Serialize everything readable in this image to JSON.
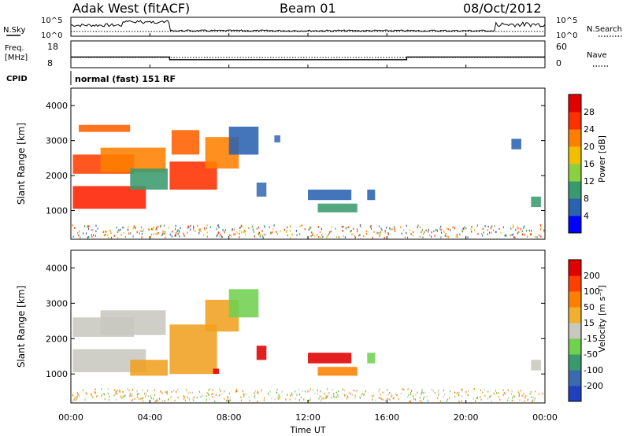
{
  "header": {
    "station": "Adak West (fitACF)",
    "beam": "Beam 01",
    "date": "08/Oct/2012"
  },
  "noise_panel": {
    "left_label": "N.Sky",
    "right_label": "N.Search",
    "left_ticks": [
      "10^5",
      "10^0"
    ],
    "right_ticks": [
      "10^5",
      "10^0"
    ]
  },
  "freq_panel": {
    "left_label_1": "Freq.",
    "left_label_2": "[MHz]",
    "right_label": "Nave",
    "left_ticks": [
      "18",
      "8"
    ],
    "right_ticks": [
      "60",
      "0"
    ],
    "freq_steps": [
      {
        "start": 0,
        "end": 5,
        "value": 12
      },
      {
        "start": 5,
        "end": 17,
        "value": 11
      },
      {
        "start": 17,
        "end": 24,
        "value": 12
      }
    ]
  },
  "cpid": {
    "label": "CPID",
    "value": "normal (fast) 151 RF"
  },
  "power_panel": {
    "ylabel": "Slant Range [km]",
    "yticks": [
      "1000",
      "2000",
      "3000",
      "4000"
    ],
    "cbar_label": "Power [dB]",
    "cbar_ticks": [
      "4",
      "8",
      "12",
      "16",
      "20",
      "24",
      "28"
    ],
    "cbar_colors": [
      "#0000ff",
      "#2a62b0",
      "#3a9a6e",
      "#8ad040",
      "#f0c000",
      "#ff8000",
      "#ff3000",
      "#e00000"
    ]
  },
  "velocity_panel": {
    "ylabel": "Slant Range [km]",
    "yticks": [
      "1000",
      "2000",
      "3000",
      "4000"
    ],
    "cbar_label": "Velocity [m s⁻¹]",
    "cbar_ticks": [
      "200",
      "100",
      "50",
      "15",
      "-15",
      "-50",
      "-100",
      "-200"
    ],
    "cbar_colors": [
      "#2040c0",
      "#3a6ab0",
      "#3a9a6e",
      "#70d050",
      "#c8c8c0",
      "#f0b030",
      "#ff8000",
      "#ff4000",
      "#e00000"
    ]
  },
  "xaxis": {
    "label": "Time UT",
    "ticks": [
      "00:00",
      "04:00",
      "08:00",
      "12:00",
      "16:00",
      "20:00",
      "00:00"
    ]
  },
  "chart_data": {
    "type": "heatmap",
    "x_range_hours": [
      0,
      24
    ],
    "y_range_km": [
      180,
      4500
    ],
    "grid": false,
    "power_regions": [
      {
        "t0": 0.1,
        "t1": 3.8,
        "r0": 1050,
        "r1": 1700,
        "color": "#ff2000"
      },
      {
        "t0": 0.1,
        "t1": 3.2,
        "r0": 2050,
        "r1": 2600,
        "color": "#ff4000"
      },
      {
        "t0": 0.4,
        "t1": 3.0,
        "r0": 3250,
        "r1": 3450,
        "color": "#ff6000"
      },
      {
        "t0": 1.5,
        "t1": 4.8,
        "r0": 2100,
        "r1": 2800,
        "color": "#ff8000"
      },
      {
        "t0": 3.0,
        "t1": 4.9,
        "r0": 1600,
        "r1": 2200,
        "color": "#3a9a6e"
      },
      {
        "t0": 5.0,
        "t1": 7.4,
        "r0": 1600,
        "r1": 2400,
        "color": "#ff3000"
      },
      {
        "t0": 5.1,
        "t1": 6.5,
        "r0": 2600,
        "r1": 3300,
        "color": "#ff6000"
      },
      {
        "t0": 6.8,
        "t1": 8.5,
        "r0": 2200,
        "r1": 3100,
        "color": "#ff8000"
      },
      {
        "t0": 8.0,
        "t1": 9.5,
        "r0": 2600,
        "r1": 3400,
        "color": "#2a62b0"
      },
      {
        "t0": 9.4,
        "t1": 9.9,
        "r0": 1400,
        "r1": 1800,
        "color": "#3a6ab0"
      },
      {
        "t0": 10.3,
        "t1": 10.6,
        "r0": 2950,
        "r1": 3150,
        "color": "#3a6ab0"
      },
      {
        "t0": 12.0,
        "t1": 14.2,
        "r0": 1300,
        "r1": 1600,
        "color": "#2a62b0"
      },
      {
        "t0": 12.5,
        "t1": 14.5,
        "r0": 950,
        "r1": 1200,
        "color": "#3a9a6e"
      },
      {
        "t0": 15.0,
        "t1": 15.4,
        "r0": 1300,
        "r1": 1600,
        "color": "#2a62b0"
      },
      {
        "t0": 22.3,
        "t1": 22.8,
        "r0": 2750,
        "r1": 3050,
        "color": "#2a62b0"
      },
      {
        "t0": 23.3,
        "t1": 23.8,
        "r0": 1100,
        "r1": 1400,
        "color": "#3a9a6e"
      }
    ],
    "velocity_regions": [
      {
        "t0": 0.1,
        "t1": 3.8,
        "r0": 1050,
        "r1": 1700,
        "color": "#c8c8c0"
      },
      {
        "t0": 0.1,
        "t1": 3.2,
        "r0": 2050,
        "r1": 2600,
        "color": "#c8c8c0"
      },
      {
        "t0": 1.5,
        "t1": 4.8,
        "r0": 2100,
        "r1": 2800,
        "color": "#c8c8c0"
      },
      {
        "t0": 3.0,
        "t1": 4.9,
        "r0": 950,
        "r1": 1400,
        "color": "#f0a020"
      },
      {
        "t0": 5.0,
        "t1": 7.4,
        "r0": 1000,
        "r1": 2400,
        "color": "#f0a020"
      },
      {
        "t0": 6.8,
        "t1": 8.5,
        "r0": 2200,
        "r1": 3100,
        "color": "#f0a020"
      },
      {
        "t0": 8.0,
        "t1": 9.5,
        "r0": 2600,
        "r1": 3400,
        "color": "#70d050"
      },
      {
        "t0": 9.4,
        "t1": 9.9,
        "r0": 1400,
        "r1": 1800,
        "color": "#e00000"
      },
      {
        "t0": 7.2,
        "t1": 7.5,
        "r0": 1000,
        "r1": 1150,
        "color": "#e00000"
      },
      {
        "t0": 12.0,
        "t1": 14.2,
        "r0": 1300,
        "r1": 1600,
        "color": "#e00000"
      },
      {
        "t0": 12.5,
        "t1": 14.5,
        "r0": 950,
        "r1": 1200,
        "color": "#ff8000"
      },
      {
        "t0": 15.0,
        "t1": 15.4,
        "r0": 1300,
        "r1": 1600,
        "color": "#70d050"
      },
      {
        "t0": 23.3,
        "t1": 23.8,
        "r0": 1100,
        "r1": 1400,
        "color": "#c8c8c0"
      }
    ]
  }
}
